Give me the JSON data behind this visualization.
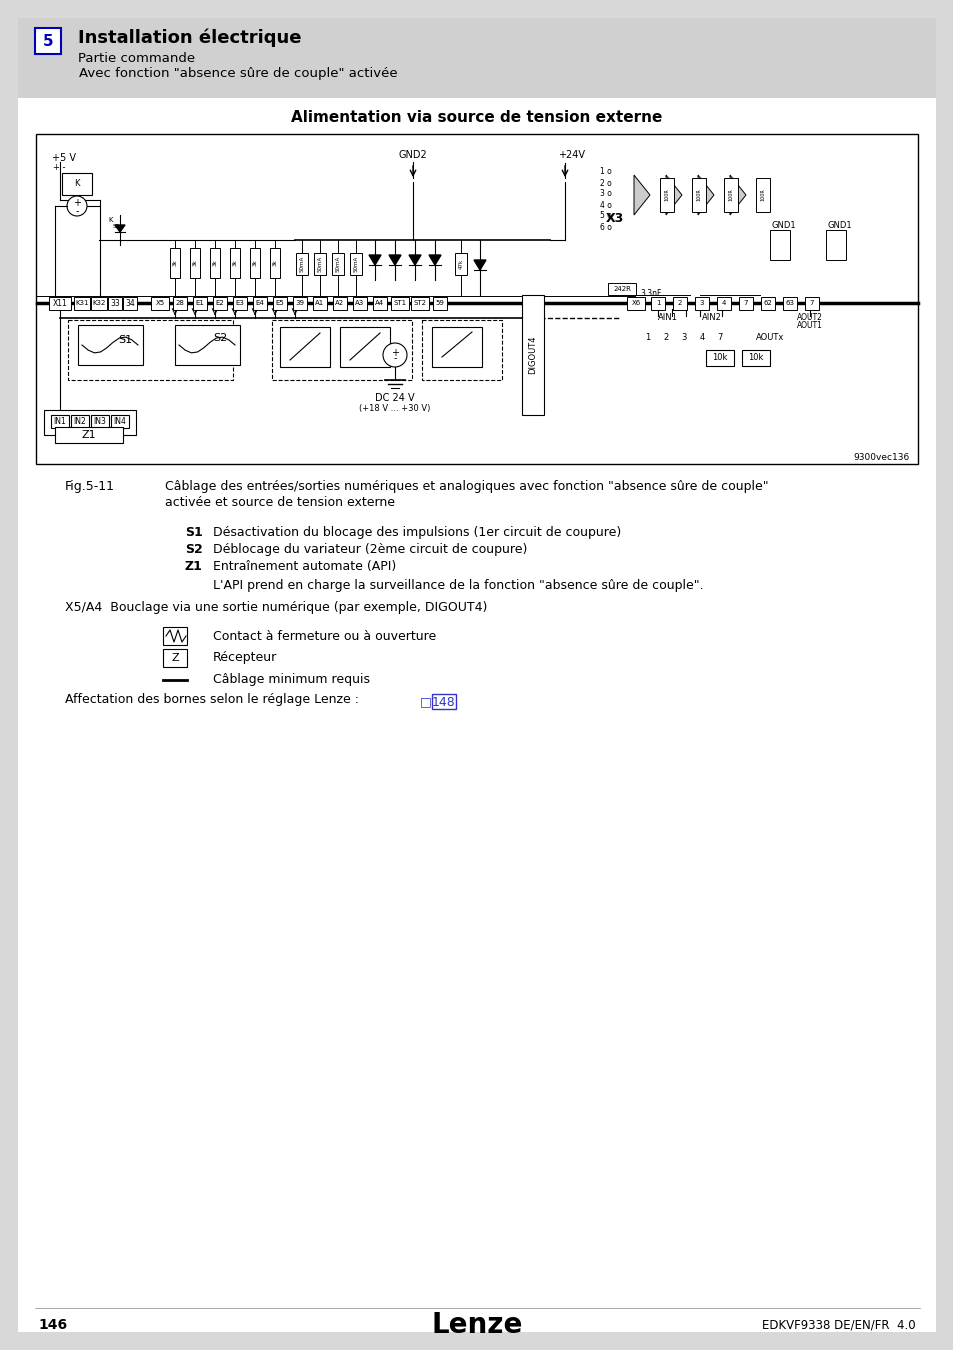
{
  "bg_color": "#d8d8d8",
  "page_bg": "#ffffff",
  "header_bg": "#d0d0d0",
  "title": "Installation électrique",
  "subtitle1": "Partie commande",
  "subtitle2": "Avec fonction \"absence sûre de couple\" activée",
  "section_num": "5",
  "section_box_color": "#0000bb",
  "diagram_title": "Alimentation via source de tension externe",
  "fig_label": "Fig.5-11",
  "fig_caption1": "Câblage des entrées/sorties numériques et analogiques avec fonction \"absence sûre de couple\"",
  "fig_caption2": "activée et source de tension externe",
  "legend_items": [
    [
      "S1",
      "Désactivation du blocage des impulsions (1er circuit de coupure)"
    ],
    [
      "S2",
      "Déblocage du variateur (2ème circuit de coupure)"
    ],
    [
      "Z1",
      "Entraînement automate (API)"
    ]
  ],
  "api_note": "L'API prend en charge la surveillance de la fonction \"absence sûre de couple\".",
  "x5a4_text": "X5/A4  Bouclage via une sortie numérique (par exemple, DIGOUT4)",
  "contact_text": "Contact à fermeture ou à ouverture",
  "recepteur_text": "Récepteur",
  "cablage_text": "Câblage minimum requis",
  "affectation_text": "Affectation des bornes selon le réglage Lenze : ",
  "affectation_link": "148",
  "footer_page": "146",
  "footer_brand": "Lenze",
  "footer_ref": "EDKVF9338 DE/EN/FR  4.0",
  "diagram_ref": "9300vec136"
}
